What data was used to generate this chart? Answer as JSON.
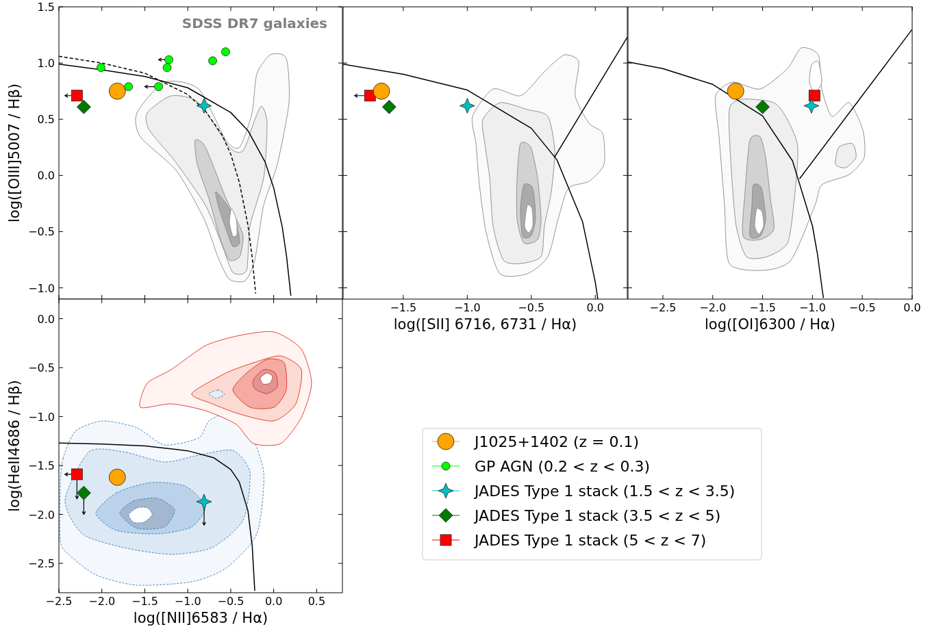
{
  "chart_data": [
    {
      "type": "scatter",
      "xlim": [
        -2.5,
        0.8
      ],
      "ylim": [
        -1.1,
        1.5
      ],
      "tick_labels": "y",
      "ylabel": "log([OIII]5007 / Hβ)",
      "annotations": [
        "SDSS DR7 galaxies"
      ],
      "legend": "bottom right",
      "xticks": [
        {
          "value": -2.5,
          "label": null
        },
        {
          "value": -2,
          "label": null
        },
        {
          "value": -1.5,
          "label": null
        },
        {
          "value": -1,
          "label": null
        },
        {
          "value": -0.5,
          "label": null
        },
        {
          "value": 0,
          "label": null
        },
        {
          "value": 0.5,
          "label": null
        }
      ],
      "yticks": [
        {
          "value": -1,
          "label": "−1.0"
        },
        {
          "value": -0.5,
          "label": "−0.5"
        },
        {
          "value": 0,
          "label": "0.0"
        },
        {
          "value": 0.5,
          "label": "0.5"
        },
        {
          "value": 1,
          "label": "1.0"
        },
        {
          "value": 1.5,
          "label": "1.5"
        }
      ],
      "series": [
        {
          "type": "line",
          "color": "#000000",
          "line_style": "solid",
          "x": [
            -2.5,
            -2.0,
            -1.5,
            -1.0,
            -0.5,
            -0.3,
            -0.1,
            0.0,
            0.1,
            0.15,
            0.2
          ],
          "values": [
            0.99,
            0.94,
            0.88,
            0.78,
            0.56,
            0.4,
            0.12,
            -0.11,
            -0.46,
            -0.72,
            -1.07
          ]
        },
        {
          "type": "line",
          "color": "#000000",
          "line_style": "dashed",
          "x": [
            -2.5,
            -2.0,
            -1.5,
            -1.0,
            -0.8,
            -0.6,
            -0.5,
            -0.4,
            -0.3,
            -0.25,
            -0.21
          ],
          "values": [
            1.06,
            1.0,
            0.91,
            0.72,
            0.58,
            0.36,
            0.19,
            -0.06,
            -0.44,
            -0.73,
            -1.05
          ]
        },
        {
          "name": "J1025+1402 (z = 0.1)",
          "color": "#ffa500",
          "marker": "circle",
          "x": [
            -1.82
          ],
          "values": [
            0.75
          ]
        },
        {
          "name": "GP AGN (0.2 < z < 0.3)",
          "color": "#00ff00",
          "marker": "circle",
          "x": [
            -2.01,
            -1.69,
            -1.34,
            -1.22,
            -1.24,
            -0.71,
            -0.56
          ],
          "values": [
            0.96,
            0.79,
            0.79,
            1.03,
            0.96,
            1.02,
            1.1
          ],
          "xerrors": [
            null,
            null,
            [
              -1.5,
              -1.34
            ],
            [
              -1.34,
              -1.22
            ],
            null,
            null,
            null
          ]
        },
        {
          "name": "JADES Type 1 stack (1.5 < z < 3.5)",
          "color": "#00bfbf",
          "marker": "star",
          "x": [
            -0.81
          ],
          "values": [
            0.62
          ]
        },
        {
          "name": "JADES Type 1 stack (3.5 < z < 5)",
          "color": "#007a00",
          "marker": "diamond",
          "x": [
            -2.21
          ],
          "values": [
            0.61
          ]
        },
        {
          "name": "JADES Type 1 stack (5 < z < 7)",
          "color": "#ff0000",
          "marker": "square",
          "x": [
            -2.29
          ],
          "values": [
            0.71
          ],
          "xerrors": [
            [
              -2.43,
              -2.29
            ]
          ]
        }
      ]
    },
    {
      "type": "scatter",
      "xlim": [
        -1.97,
        0.25
      ],
      "ylim": [
        -1.1,
        1.5
      ],
      "tick_labels": "x",
      "xlabel": "log([SII] 6716, 6731 / Hα)",
      "xticks": [
        {
          "value": -1.5,
          "label": "−1.5"
        },
        {
          "value": -1,
          "label": "−1.0"
        },
        {
          "value": -0.5,
          "label": "−0.5"
        },
        {
          "value": 0,
          "label": "0.0"
        }
      ],
      "yticks": [
        {
          "value": -1,
          "label": null
        },
        {
          "value": -0.5,
          "label": null
        },
        {
          "value": 0,
          "label": null
        },
        {
          "value": 0.5,
          "label": null
        },
        {
          "value": 1,
          "label": null
        }
      ],
      "series": [
        {
          "type": "line",
          "color": "#000000",
          "line_style": "solid",
          "x": [
            -1.97,
            -1.5,
            -1.0,
            -0.5,
            -0.3,
            -0.1,
            0.0,
            0.02
          ],
          "values": [
            0.99,
            0.9,
            0.76,
            0.42,
            0.14,
            -0.41,
            -0.95,
            -1.1
          ]
        },
        {
          "type": "line",
          "color": "#000000",
          "line_style": "solid",
          "x": [
            -0.32,
            0.25
          ],
          "values": [
            0.16,
            1.23
          ]
        },
        {
          "color": "#ff0000",
          "marker": "square",
          "x": [
            -1.76
          ],
          "values": [
            0.71
          ],
          "xerrors": [
            [
              -1.88,
              -1.76
            ]
          ]
        },
        {
          "color": "#ffa500",
          "marker": "circle",
          "x": [
            -1.67
          ],
          "values": [
            0.75
          ]
        },
        {
          "color": "#007a00",
          "marker": "diamond",
          "x": [
            -1.61
          ],
          "values": [
            0.61
          ]
        },
        {
          "color": "#00bfbf",
          "marker": "star",
          "x": [
            -1.0
          ],
          "values": [
            0.62
          ]
        }
      ]
    },
    {
      "type": "scatter",
      "xlim": [
        -2.85,
        0
      ],
      "ylim": [
        -1.1,
        1.5
      ],
      "tick_labels": "x",
      "xlabel": "log([OI]6300 / Hα)",
      "xticks": [
        {
          "value": -2.5,
          "label": "−2.5"
        },
        {
          "value": -2,
          "label": "−2.0"
        },
        {
          "value": -1.5,
          "label": "−1.5"
        },
        {
          "value": -1,
          "label": "−1.0"
        },
        {
          "value": -0.5,
          "label": "−0.5"
        },
        {
          "value": 0,
          "label": "0.0"
        }
      ],
      "yticks": [
        {
          "value": -1,
          "label": null
        },
        {
          "value": -0.5,
          "label": null
        },
        {
          "value": 0,
          "label": null
        },
        {
          "value": 0.5,
          "label": null
        },
        {
          "value": 1,
          "label": null
        }
      ],
      "series": [
        {
          "type": "line",
          "color": "#000000",
          "line_style": "solid",
          "x": [
            -2.85,
            -2.5,
            -2.0,
            -1.5,
            -1.2,
            -1.0,
            -0.95,
            -0.9,
            -0.89
          ],
          "values": [
            1.01,
            0.95,
            0.81,
            0.53,
            0.13,
            -0.45,
            -0.7,
            -1.03,
            -1.09
          ]
        },
        {
          "type": "line",
          "color": "#000000",
          "line_style": "solid",
          "x": [
            -1.13,
            0
          ],
          "values": [
            -0.03,
            1.3
          ]
        },
        {
          "color": "#ffa500",
          "marker": "circle",
          "x": [
            -1.77
          ],
          "values": [
            0.75
          ]
        },
        {
          "color": "#007a00",
          "marker": "diamond",
          "x": [
            -1.5
          ],
          "values": [
            0.61
          ]
        },
        {
          "color": "#ff0000",
          "marker": "square",
          "x": [
            -0.98
          ],
          "values": [
            0.71
          ],
          "xerrors": [
            0.05
          ]
        },
        {
          "color": "#00bfbf",
          "marker": "star",
          "x": [
            -1.01
          ],
          "values": [
            0.62
          ]
        }
      ]
    },
    {
      "type": "scatter",
      "xlim": [
        -2.5,
        0.8
      ],
      "ylim": [
        -2.8,
        0.2
      ],
      "xlabel": "log([NII]6583 / Hα)",
      "ylabel": "log(HeII4686 / Hβ)",
      "xticks": [
        {
          "value": -2.5,
          "label": "−2.5"
        },
        {
          "value": -2,
          "label": "−2.0"
        },
        {
          "value": -1.5,
          "label": "−1.5"
        },
        {
          "value": -1,
          "label": "−1.0"
        },
        {
          "value": -0.5,
          "label": "−0.5"
        },
        {
          "value": 0,
          "label": "0.0"
        },
        {
          "value": 0.5,
          "label": "0.5"
        }
      ],
      "yticks": [
        {
          "value": -2.5,
          "label": "−2.5"
        },
        {
          "value": -2,
          "label": "−2.0"
        },
        {
          "value": -1.5,
          "label": "−1.5"
        },
        {
          "value": -1,
          "label": "−1.0"
        },
        {
          "value": -0.5,
          "label": "−0.5"
        },
        {
          "value": 0,
          "label": "0.0"
        }
      ],
      "series": [
        {
          "type": "line",
          "color": "#000000",
          "line_style": "solid",
          "x": [
            -2.5,
            -2.0,
            -1.5,
            -1.0,
            -0.7,
            -0.5,
            -0.4,
            -0.3,
            -0.25,
            -0.22
          ],
          "values": [
            -1.27,
            -1.28,
            -1.3,
            -1.35,
            -1.42,
            -1.54,
            -1.67,
            -1.96,
            -2.32,
            -2.78
          ]
        },
        {
          "color": "#ff0000",
          "marker": "square",
          "x": [
            -2.29
          ],
          "values": [
            -1.59
          ],
          "errors": [
            [
              -1.84,
              -1.59
            ]
          ],
          "xerrors": [
            [
              -2.43,
              -2.29
            ]
          ]
        },
        {
          "color": "#ffa500",
          "marker": "circle",
          "x": [
            -1.82
          ],
          "values": [
            -1.62
          ]
        },
        {
          "color": "#007a00",
          "marker": "diamond",
          "x": [
            -2.21
          ],
          "values": [
            -1.78
          ],
          "errors": [
            [
              -2.0,
              -1.78
            ]
          ]
        },
        {
          "color": "#00bfbf",
          "marker": "star",
          "x": [
            -0.81
          ],
          "values": [
            -1.87
          ],
          "errors": [
            [
              -2.11,
              -1.87
            ]
          ]
        }
      ]
    }
  ]
}
